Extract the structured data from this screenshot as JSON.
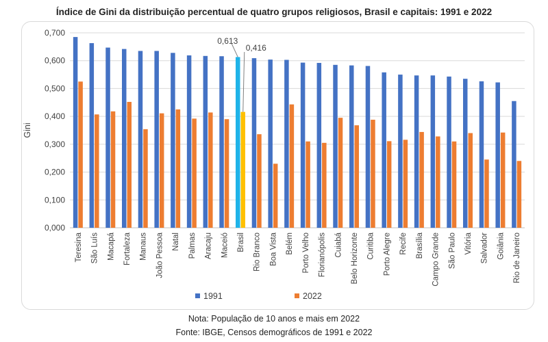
{
  "title": "Índice de Gini da distribuição percentual de quatro grupos religiosos, Brasil e capitais: 1991 e 2022",
  "notes": {
    "population": "Nota: População de 10 anos e mais em 2022",
    "source": "Fonte: IBGE, Censos demográficos de 1991 e 2022"
  },
  "colors": {
    "s1991": "#4472C4",
    "s2022": "#ED7D31",
    "brasil1991": "#1FB3E8",
    "brasil2022": "#FFC000",
    "grid": "#d9d9d9",
    "text": "#404040"
  },
  "chart_data": {
    "type": "bar",
    "title": "Índice de Gini da distribuição percentual de quatro grupos religiosos, Brasil e capitais: 1991 e 2022",
    "xlabel": "",
    "ylabel": "Gini",
    "ylim": [
      0,
      0.7
    ],
    "yticks": [
      "0,000",
      "0,100",
      "0,200",
      "0,300",
      "0,400",
      "0,500",
      "0,600",
      "0,700"
    ],
    "grid": true,
    "legend_position": "bottom",
    "categories": [
      "Teresina",
      "São Luís",
      "Macapá",
      "Fortaleza",
      "Manaus",
      "João Pessoa",
      "Natal",
      "Palmas",
      "Aracaju",
      "Maceió",
      "Brasil",
      "Rio Branco",
      "Boa Vista",
      "Belém",
      "Porto Velho",
      "Florianópolis",
      "Cuiabá",
      "Belo Horizonte",
      "Curitiba",
      "Porto Alegre",
      "Recife",
      "Brasília",
      "Campo Grande",
      "São Paulo",
      "Vitória",
      "Salvador",
      "Goiânia",
      "Rio de Janeiro"
    ],
    "series": [
      {
        "name": "1991",
        "values": [
          0.685,
          0.663,
          0.647,
          0.642,
          0.635,
          0.635,
          0.628,
          0.619,
          0.617,
          0.616,
          0.613,
          0.609,
          0.604,
          0.603,
          0.593,
          0.592,
          0.585,
          0.583,
          0.581,
          0.558,
          0.55,
          0.547,
          0.547,
          0.543,
          0.535,
          0.526,
          0.522,
          0.455
        ]
      },
      {
        "name": "2022",
        "values": [
          0.525,
          0.407,
          0.418,
          0.452,
          0.354,
          0.411,
          0.425,
          0.392,
          0.414,
          0.39,
          0.416,
          0.336,
          0.23,
          0.443,
          0.31,
          0.305,
          0.395,
          0.368,
          0.388,
          0.311,
          0.316,
          0.344,
          0.328,
          0.31,
          0.34,
          0.245,
          0.342,
          0.24
        ]
      }
    ],
    "highlight_category": "Brasil",
    "annotations": [
      "0,613",
      "0,416"
    ]
  }
}
